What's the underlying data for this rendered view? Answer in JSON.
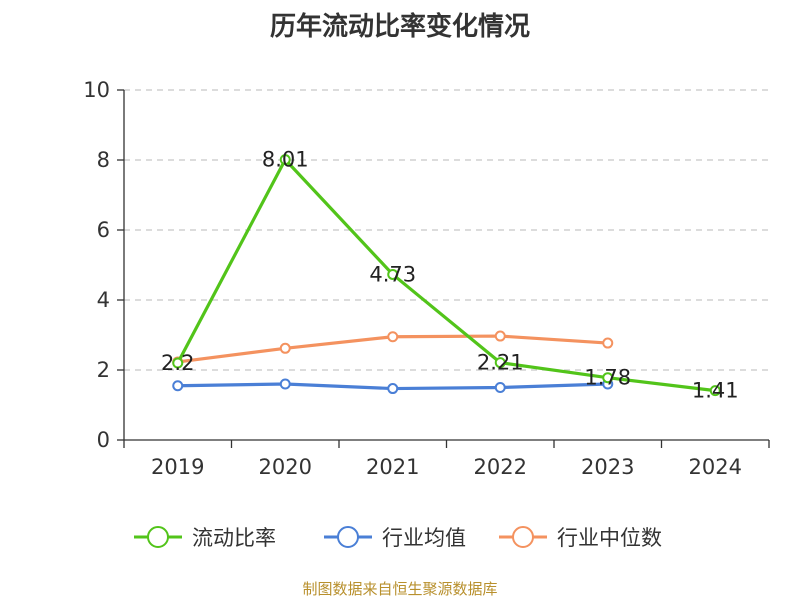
{
  "chart_data": {
    "type": "line",
    "title": "历年流动比率变化情况",
    "categories": [
      "2019",
      "2020",
      "2021",
      "2022",
      "2023",
      "2024"
    ],
    "ylim": [
      0,
      10
    ],
    "yticks": [
      0,
      2,
      4,
      6,
      8,
      10
    ],
    "grid": true,
    "legend_position": "bottom",
    "series": [
      {
        "name": "流动比率",
        "color": "#52c41a",
        "values": [
          2.2,
          8.01,
          4.73,
          2.21,
          1.78,
          1.41
        ],
        "labels": [
          "2.2",
          "8.01",
          "4.73",
          "2.21",
          "1.78",
          "1.41"
        ]
      },
      {
        "name": "行业均值",
        "color": "#4a7fd6",
        "values": [
          1.55,
          1.6,
          1.47,
          1.5,
          1.6,
          null
        ]
      },
      {
        "name": "行业中位数",
        "color": "#f4925f",
        "values": [
          2.23,
          2.62,
          2.95,
          2.97,
          2.77,
          null
        ]
      }
    ]
  },
  "source": "制图数据来自恒生聚源数据库"
}
